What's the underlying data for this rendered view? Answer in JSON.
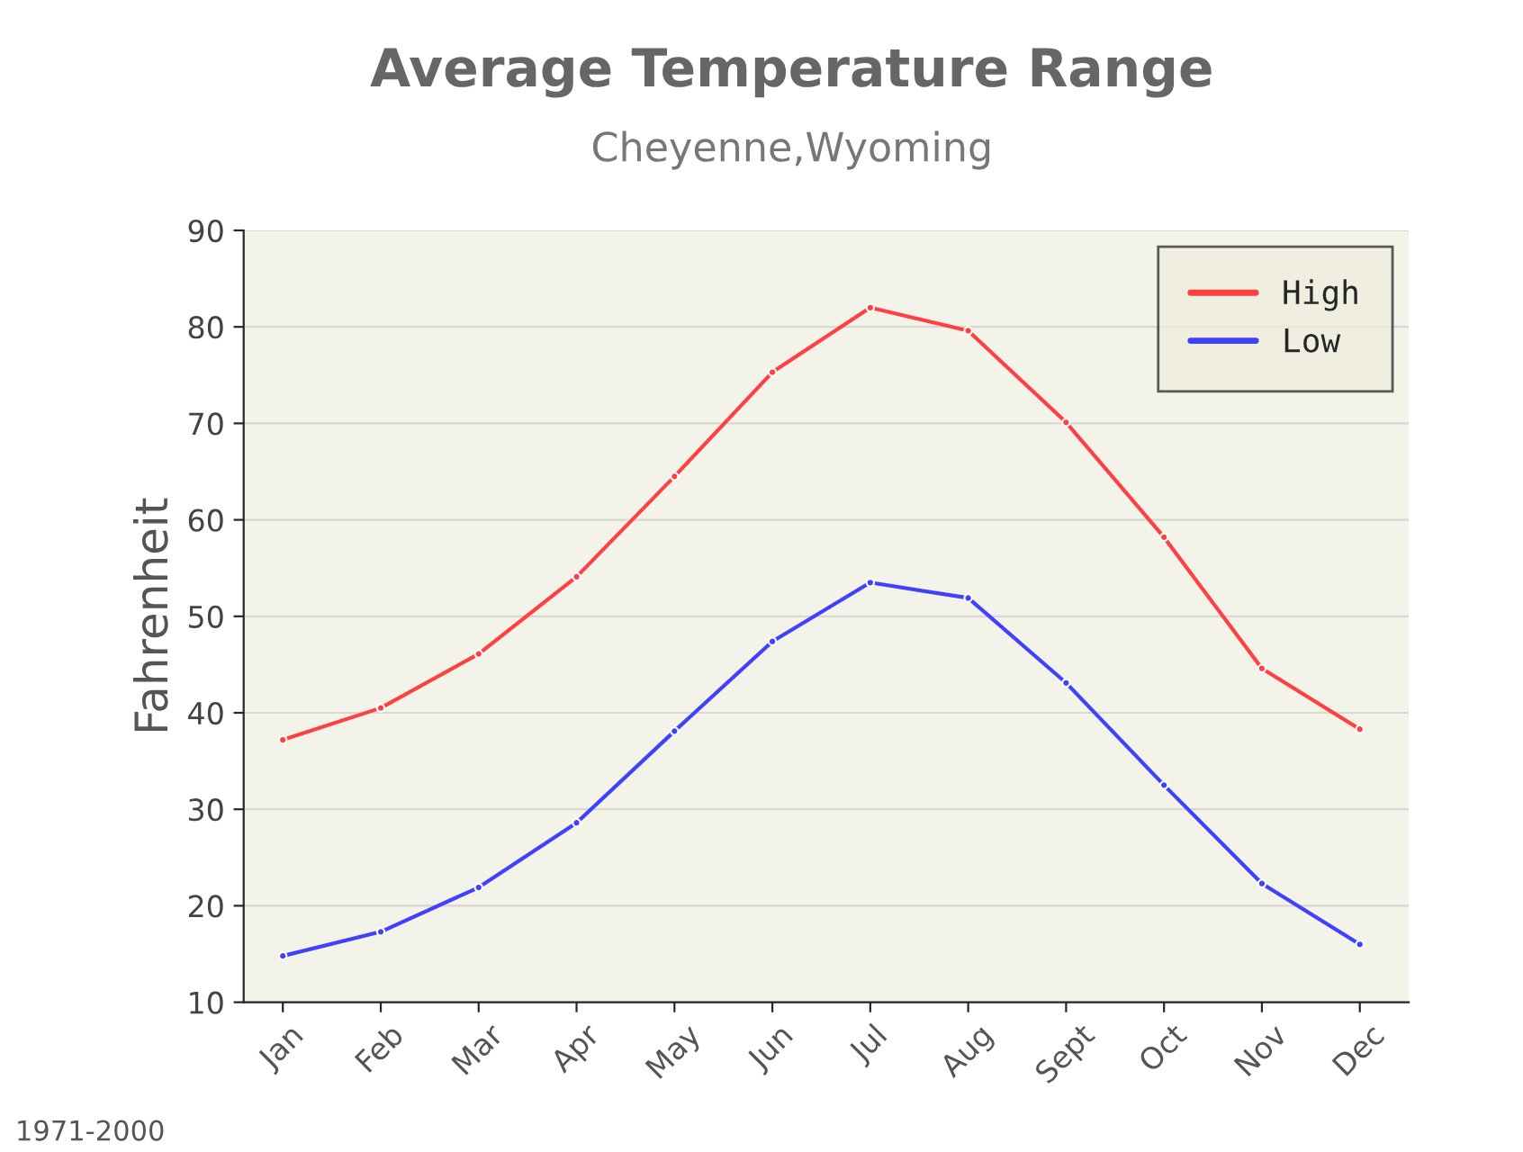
{
  "chart_data": {
    "type": "line",
    "title": "Average Temperature Range",
    "subtitle": "Cheyenne,Wyoming",
    "ylabel": "Fahrenheit",
    "categories": [
      "Jan",
      "Feb",
      "Mar",
      "Apr",
      "May",
      "Jun",
      "Jul",
      "Aug",
      "Sept",
      "Oct",
      "Nov",
      "Dec"
    ],
    "series": [
      {
        "name": "High",
        "color": "#ff4040",
        "values": [
          37.2,
          40.5,
          46.1,
          54.1,
          64.5,
          75.3,
          82,
          79.6,
          70.1,
          58.2,
          44.6,
          38.3
        ]
      },
      {
        "name": "Low",
        "color": "#4040ff",
        "values": [
          14.8,
          17.3,
          21.9,
          28.6,
          38.1,
          47.4,
          53.5,
          51.9,
          43.1,
          32.5,
          22.3,
          16
        ]
      }
    ],
    "ylim": [
      10,
      90
    ],
    "yticks": [
      10,
      20,
      30,
      40,
      50,
      60,
      70,
      80,
      90
    ],
    "grid": "y",
    "legend": "top right",
    "marker": "circle",
    "line_style": "solid",
    "annotations": [
      "1971-2000"
    ]
  }
}
